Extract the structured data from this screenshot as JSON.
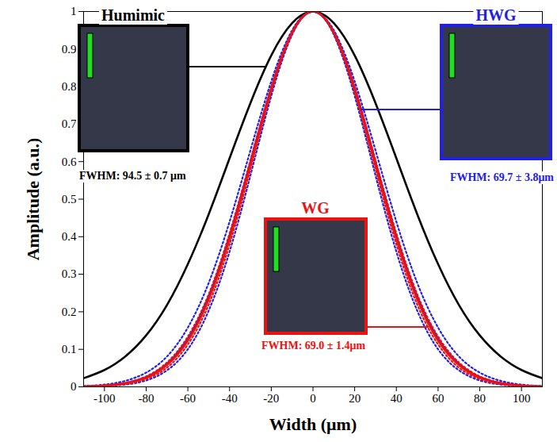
{
  "chart_data": {
    "type": "line",
    "x_label": "Width (μm)",
    "y_label": "Amplitude (a.u.)",
    "x": [
      -110,
      -100,
      -90,
      -80,
      -70,
      -60,
      -50,
      -40,
      -30,
      -20,
      -10,
      0,
      10,
      20,
      30,
      40,
      50,
      60,
      70,
      80,
      90,
      100,
      110
    ],
    "xlim": [
      -110,
      110
    ],
    "xticks": [
      -100,
      -80,
      -60,
      -40,
      -20,
      0,
      20,
      40,
      60,
      80,
      100
    ],
    "ylim": [
      0,
      1
    ],
    "yticks": [
      0,
      0.1,
      0.2,
      0.3,
      0.4,
      0.5,
      0.6,
      0.7,
      0.8,
      0.9,
      1
    ],
    "grid": false,
    "series": [
      {
        "name": "Humimic",
        "color": "#000000",
        "line_style": "solid",
        "annotation": "FWHM: 94.5 ± 0.7 μm",
        "values": [
          0.023,
          0.045,
          0.081,
          0.137,
          0.218,
          0.327,
          0.46,
          0.609,
          0.756,
          0.883,
          0.969,
          1,
          0.969,
          0.883,
          0.756,
          0.609,
          0.46,
          0.327,
          0.218,
          0.137,
          0.081,
          0.045,
          0.023
        ]
      },
      {
        "name": "HWG",
        "color": "#2020e6",
        "line_style": "solid",
        "annotation": "FWHM: 69.7 ± 3.8μm",
        "values": [
          0.001,
          0.003,
          0.01,
          0.026,
          0.061,
          0.128,
          0.24,
          0.401,
          0.598,
          0.796,
          0.945,
          1,
          0.945,
          0.796,
          0.598,
          0.401,
          0.24,
          0.128,
          0.061,
          0.026,
          0.01,
          0.003,
          0.001
        ],
        "lower": [
          0,
          0.002,
          0.006,
          0.017,
          0.044,
          0.1,
          0.203,
          0.36,
          0.563,
          0.775,
          0.938,
          1,
          0.938,
          0.775,
          0.563,
          0.36,
          0.203,
          0.1,
          0.044,
          0.017,
          0.006,
          0.002,
          0
        ],
        "upper": [
          0.002,
          0.006,
          0.016,
          0.038,
          0.081,
          0.158,
          0.277,
          0.44,
          0.63,
          0.814,
          0.95,
          1,
          0.95,
          0.814,
          0.63,
          0.44,
          0.277,
          0.158,
          0.081,
          0.038,
          0.016,
          0.006,
          0.002
        ]
      },
      {
        "name": "WG",
        "color": "#ee1111",
        "line_style": "solid",
        "annotation": "FWHM: 69.0 ± 1.4μm",
        "values": [
          0.001,
          0.003,
          0.009,
          0.024,
          0.058,
          0.123,
          0.233,
          0.394,
          0.592,
          0.792,
          0.943,
          1,
          0.943,
          0.792,
          0.592,
          0.394,
          0.233,
          0.123,
          0.058,
          0.024,
          0.009,
          0.003,
          0.001
        ],
        "lower": [
          0.001,
          0.002,
          0.007,
          0.021,
          0.051,
          0.113,
          0.219,
          0.379,
          0.579,
          0.785,
          0.941,
          1,
          0.941,
          0.785,
          0.579,
          0.379,
          0.219,
          0.113,
          0.051,
          0.021,
          0.007,
          0.002,
          0.001
        ],
        "upper": [
          0.001,
          0.004,
          0.011,
          0.028,
          0.065,
          0.134,
          0.247,
          0.409,
          0.604,
          0.8,
          0.946,
          1,
          0.946,
          0.8,
          0.604,
          0.409,
          0.247,
          0.134,
          0.065,
          0.028,
          0.011,
          0.004,
          0.001
        ]
      }
    ]
  }
}
